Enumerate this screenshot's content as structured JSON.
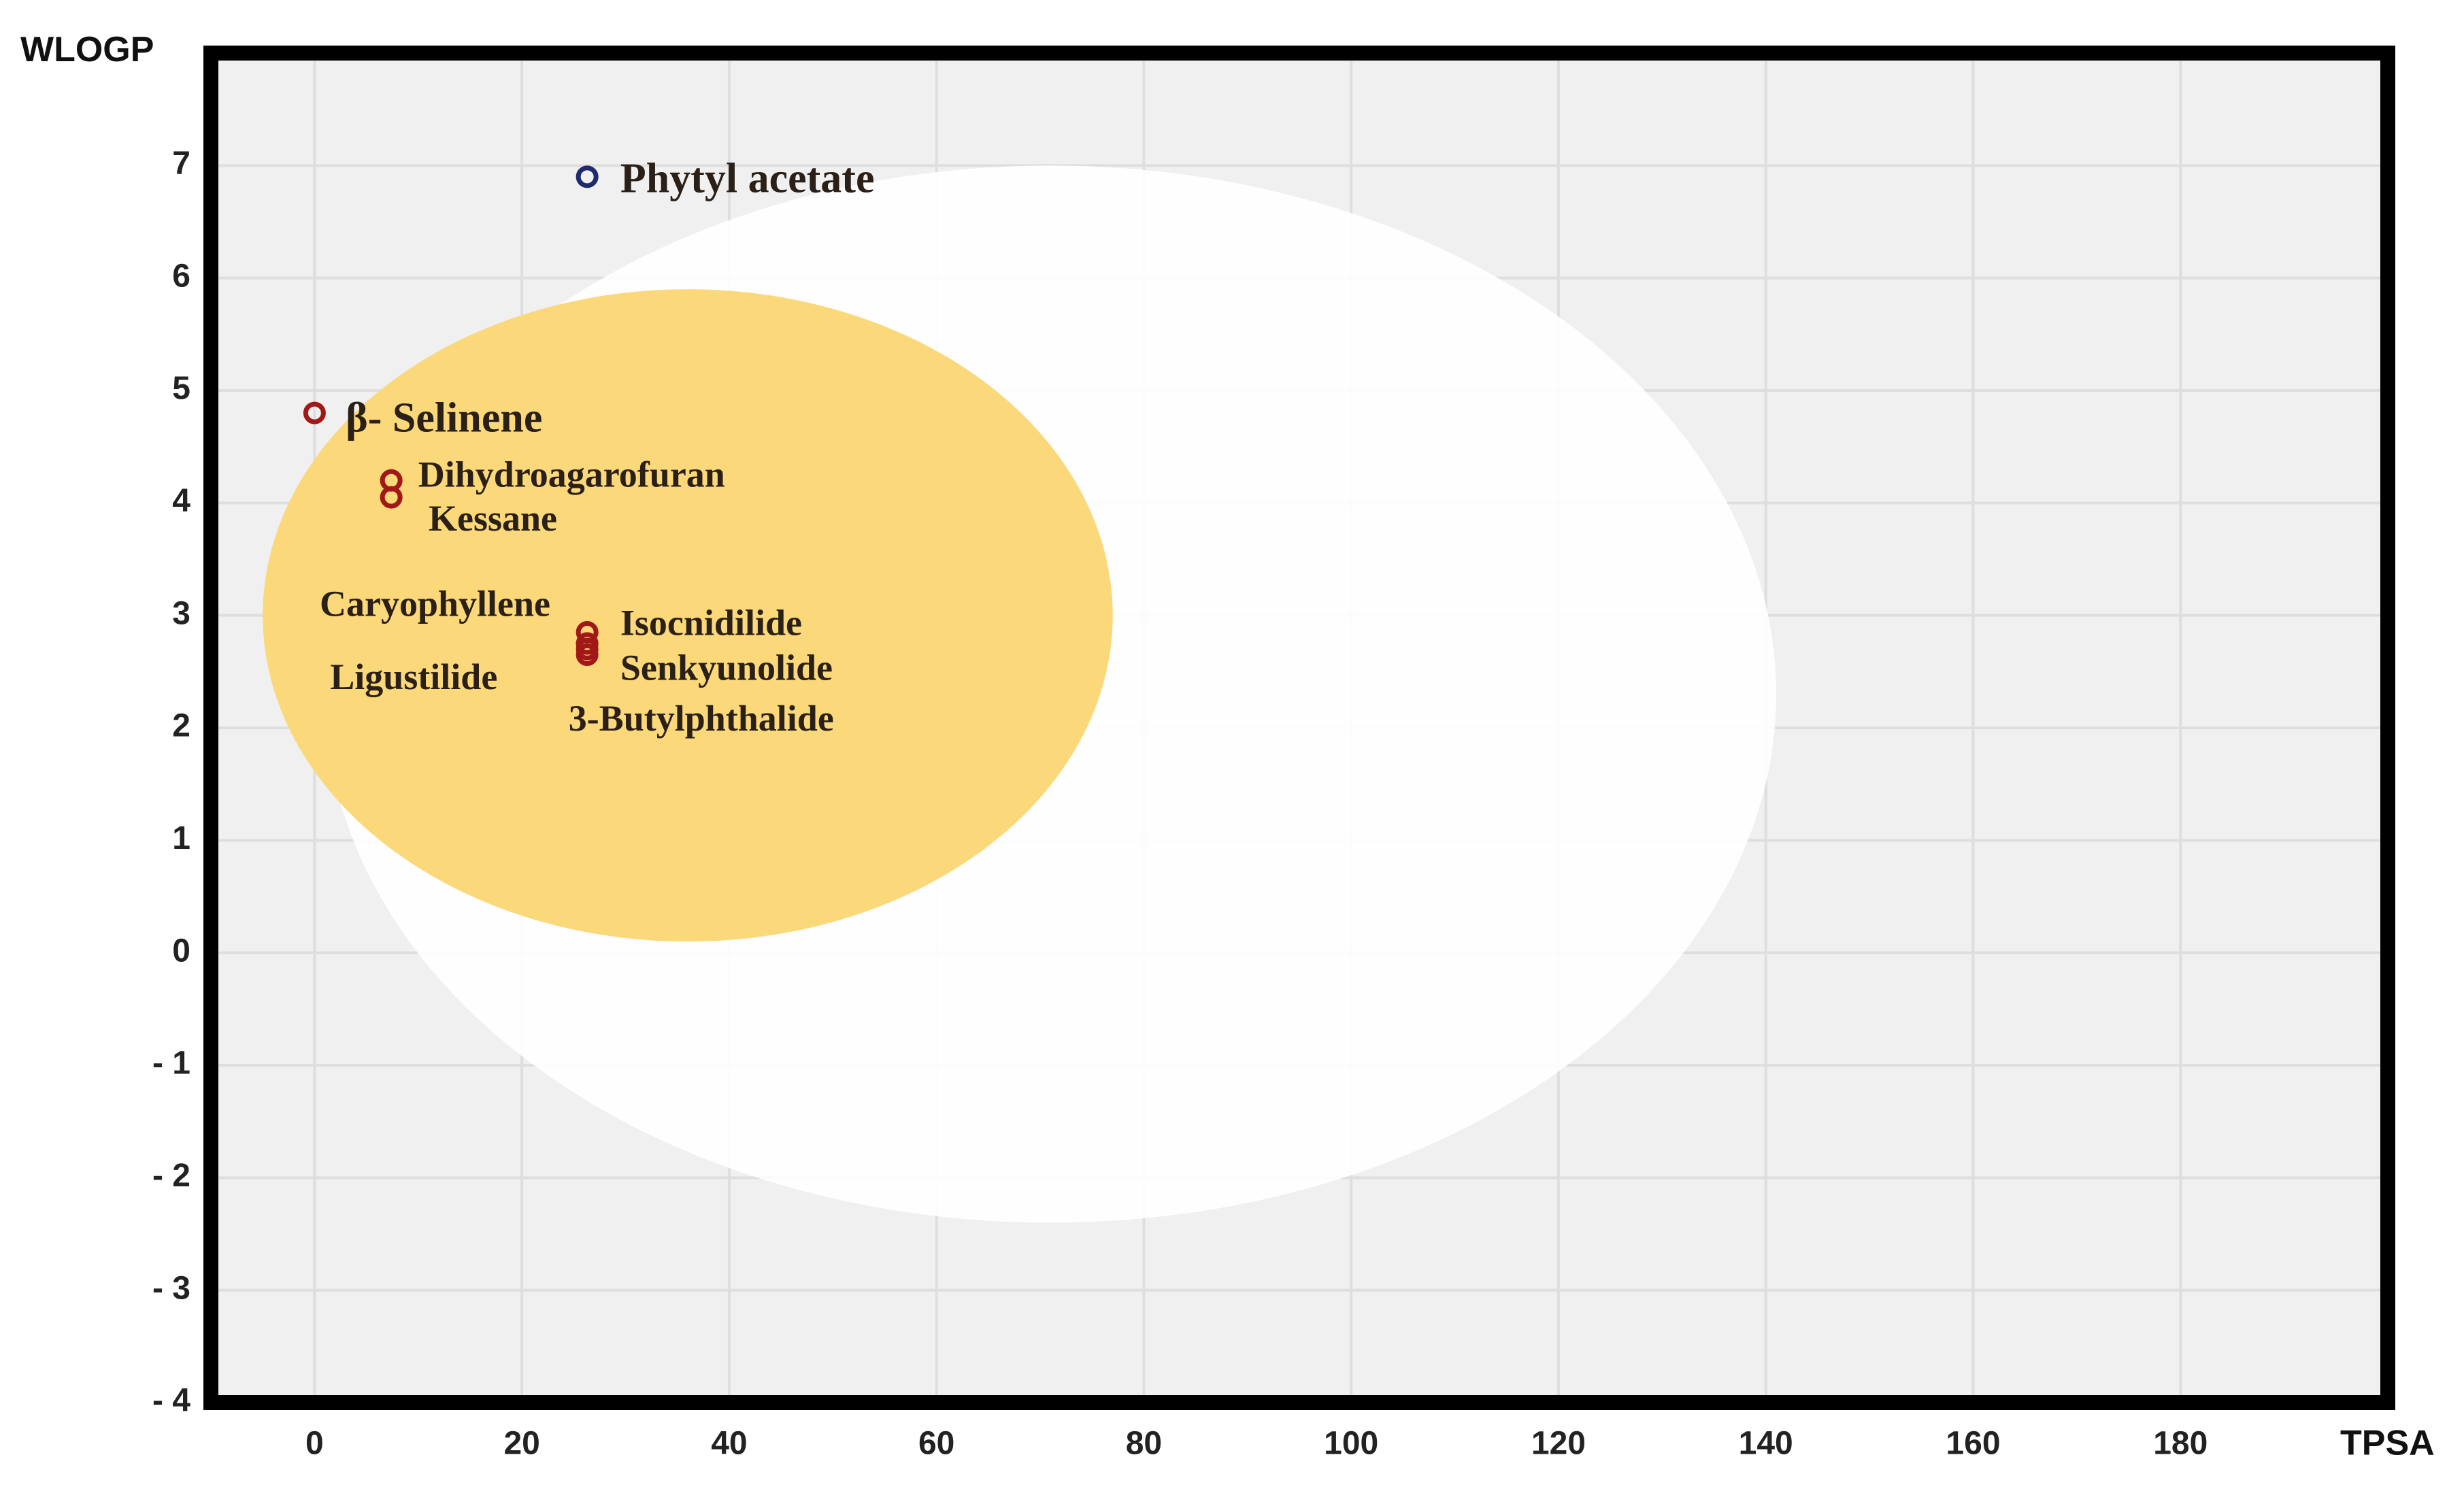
{
  "chart_data": {
    "type": "scatter",
    "xlabel": "TPSA",
    "ylabel": "WLOGP",
    "xlim": [
      -10,
      200
    ],
    "ylim": [
      -4,
      8
    ],
    "xticks": [
      0,
      20,
      40,
      60,
      80,
      100,
      120,
      140,
      160,
      180
    ],
    "yticks": [
      -4,
      -3,
      -2,
      -1,
      0,
      1,
      2,
      3,
      4,
      5,
      6,
      7
    ],
    "xtick_labels": [
      "0",
      "20",
      "40",
      "60",
      "80",
      "100",
      "120",
      "140",
      "160",
      "180"
    ],
    "ytick_labels": [
      "- 4",
      "- 3",
      "- 2",
      "- 1",
      "0",
      "1",
      "2",
      "3",
      "4",
      "5",
      "6",
      "7"
    ],
    "grid": true,
    "colors": {
      "plot_background": "#f0f0f0",
      "white_region": "#ffffff",
      "yolk_region": "#fbd87a",
      "frame": "#000000",
      "grid": "#dedede",
      "point_outside_yolk": "#1f2a6e",
      "point_in_yolk": "#a01818"
    },
    "regions": [
      {
        "name": "white",
        "center": [
          71,
          2.3
        ],
        "radius": [
          70,
          4.7
        ]
      },
      {
        "name": "yolk",
        "center": [
          36,
          3.0
        ],
        "radius": [
          41,
          2.9
        ]
      }
    ],
    "points": [
      {
        "label": "Phytyl acetate",
        "x": 26.3,
        "y": 6.9,
        "color": "#1f2a6e"
      },
      {
        "label": "β- Selinene",
        "x": 0,
        "y": 4.8,
        "color": "#a01818"
      },
      {
        "label": "Dihydroagarofuran",
        "x": 7.4,
        "y": 4.2,
        "color": "#a01818"
      },
      {
        "label": "Kessane",
        "x": 7.4,
        "y": 4.05,
        "color": "#a01818"
      },
      {
        "label": "Caryophyllene",
        "x": 26.3,
        "y": 2.85,
        "color": "#a01818"
      },
      {
        "label": "Ligustilide",
        "x": 26.3,
        "y": 2.75,
        "color": "#a01818"
      },
      {
        "label": "Isocnidilide",
        "x": 26.3,
        "y": 2.75,
        "color": "#a01818"
      },
      {
        "label": "Senkyunolide",
        "x": 26.3,
        "y": 2.7,
        "color": "#a01818"
      },
      {
        "label": "3-Butylphthalide",
        "x": 26.3,
        "y": 2.65,
        "color": "#a01818"
      }
    ],
    "labels": [
      {
        "text": "Phytyl acetate",
        "x": 29.5,
        "y": 6.85,
        "size": "big"
      },
      {
        "text": "β- Selinene",
        "x": 3.0,
        "y": 4.72,
        "size": "big"
      },
      {
        "text": "Dihydroagarofuran",
        "x": 10.0,
        "y": 4.22,
        "size": "normal"
      },
      {
        "text": "Kessane",
        "x": 11.0,
        "y": 3.83,
        "size": "normal"
      },
      {
        "text": "Caryophyllene",
        "x": 0.5,
        "y": 3.07,
        "size": "normal"
      },
      {
        "text": "Ligustilide",
        "x": 1.5,
        "y": 2.42,
        "size": "normal"
      },
      {
        "text": "Isocnidilide",
        "x": 29.5,
        "y": 2.9,
        "size": "normal"
      },
      {
        "text": "Senkyunolide",
        "x": 29.5,
        "y": 2.5,
        "size": "normal"
      },
      {
        "text": "3-Butylphthalide",
        "x": 24.5,
        "y": 2.05,
        "size": "normal"
      }
    ]
  }
}
